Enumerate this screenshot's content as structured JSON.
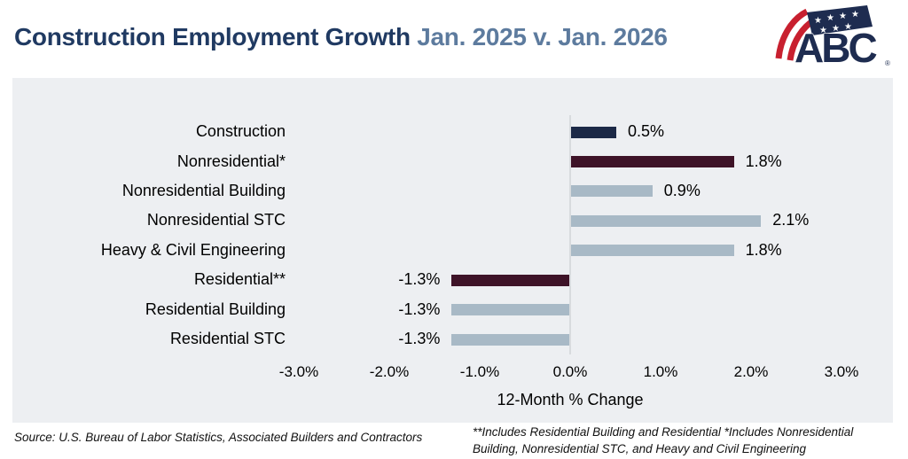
{
  "header": {
    "title_main": "Construction Employment Growth",
    "title_period": " Jan. 2025 v. Jan. 2026",
    "logo_text": "ABC",
    "logo_registered": "®"
  },
  "chart_data": {
    "type": "bar",
    "orientation": "horizontal",
    "title": "Construction Employment Growth Jan. 2025 v. Jan. 2026",
    "categories": [
      "Construction",
      "Nonresidential*",
      "Nonresidential Building",
      "Nonresidential STC",
      "Heavy & Civil Engineering",
      "Residential**",
      "Residential Building",
      "Residential STC"
    ],
    "values": [
      0.5,
      1.8,
      0.9,
      2.1,
      1.8,
      -1.3,
      -1.3,
      -1.3
    ],
    "value_labels": [
      "0.5%",
      "1.8%",
      "0.9%",
      "2.1%",
      "1.8%",
      "-1.3%",
      "-1.3%",
      "-1.3%"
    ],
    "bar_colors": [
      "#1c2947",
      "#3e1328",
      "#a8b9c6",
      "#a8b9c6",
      "#a8b9c6",
      "#3e1328",
      "#a8b9c6",
      "#a8b9c6"
    ],
    "xlabel": "12-Month % Change",
    "x_tick_values": [
      -3,
      -2,
      -1,
      0,
      1,
      2,
      3
    ],
    "x_tick_labels": [
      "-3.0%",
      "-2.0%",
      "-1.0%",
      "0.0%",
      "1.0%",
      "2.0%",
      "3.0%"
    ],
    "xlim": [
      -3.5,
      3.5
    ],
    "grid": false,
    "legend": false,
    "panel_background": "#edeff2",
    "zero_line_color": "#d8dbde"
  },
  "footer": {
    "source": "Source: U.S. Bureau of Labor Statistics, Associated Builders and Contractors",
    "note": "**Includes Residential Building and Residential *Includes Nonresidential Building, Nonresidential STC, and Heavy and Civil Engineering"
  },
  "colors": {
    "title_main": "#203a62",
    "title_period": "#5d7b9e",
    "navy_bar": "#1c2947",
    "maroon_bar": "#3e1328",
    "gray_blue_bar": "#a8b9c6",
    "logo_red": "#c8202f",
    "logo_navy": "#1e2c50"
  }
}
